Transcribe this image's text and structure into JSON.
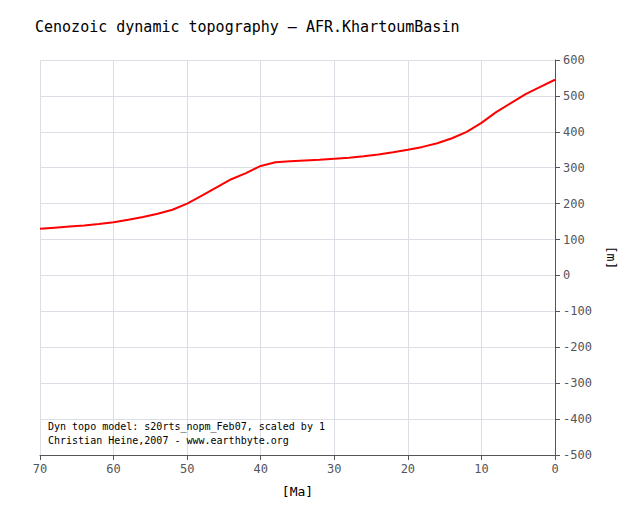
{
  "chart_data": {
    "type": "line",
    "title": "Cenozoic dynamic topography – AFR.KhartoumBasin",
    "xlabel": "[Ma]",
    "ylabel": "[m]",
    "x": [
      70,
      68,
      66,
      64,
      62,
      60,
      58,
      56,
      54,
      52,
      50,
      48,
      46,
      44,
      42,
      40,
      38,
      36,
      34,
      32,
      30,
      28,
      26,
      24,
      22,
      20,
      18,
      16,
      14,
      12,
      10,
      8,
      6,
      4,
      2,
      0
    ],
    "values": [
      130,
      133,
      136,
      139,
      143,
      148,
      155,
      163,
      172,
      183,
      200,
      222,
      245,
      268,
      285,
      305,
      315,
      318,
      320,
      322,
      325,
      328,
      332,
      337,
      343,
      350,
      358,
      368,
      382,
      400,
      425,
      455,
      480,
      505,
      525,
      545
    ],
    "color": "#ff0000",
    "xlim": [
      70,
      0
    ],
    "ylim": [
      -500,
      600
    ],
    "xticks": [
      70,
      60,
      50,
      40,
      30,
      20,
      10,
      0
    ],
    "yticks": [
      -500,
      -400,
      -300,
      -200,
      -100,
      0,
      100,
      200,
      300,
      400,
      500,
      600
    ],
    "grid": true,
    "annotations": [
      "Dyn topo model: s20rts_nopm_Feb07, scaled by 1",
      "Christian Heine,2007 - www.earthbyte.org"
    ]
  }
}
